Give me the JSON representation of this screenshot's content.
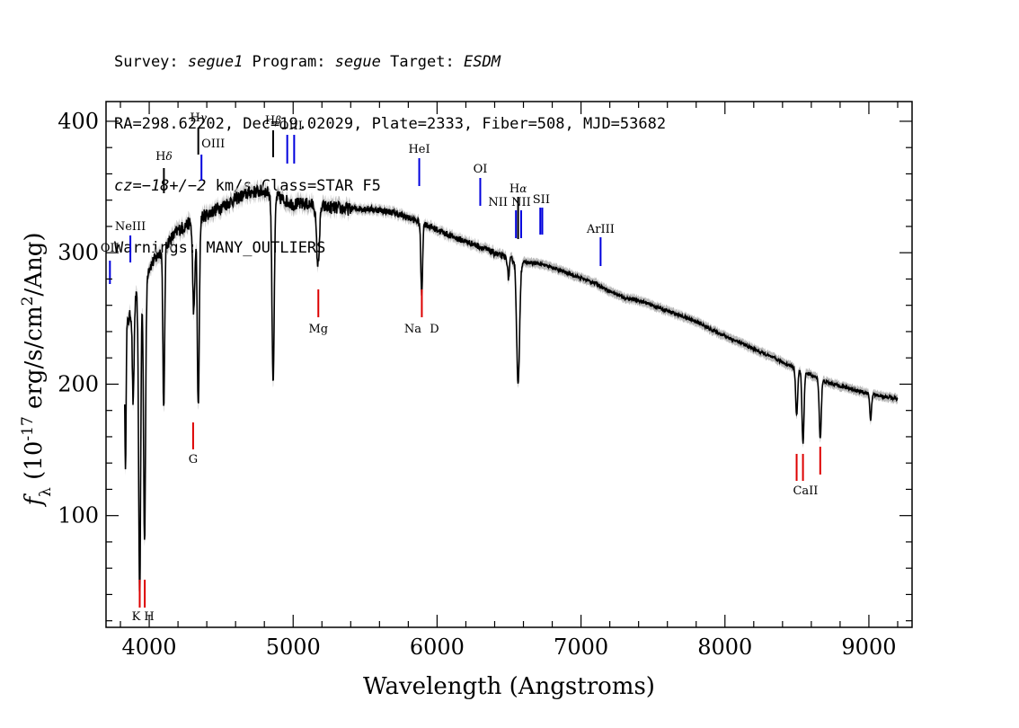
{
  "header": {
    "line1": {
      "survey_label": "Survey: ",
      "survey": "segue1",
      "program_label": " Program: ",
      "program": "segue",
      "target_label": " Target: ",
      "target": "ESDM"
    },
    "line2": "RA=298.62202, Dec=19.02029, Plate=2333, Fiber=508, MJD=53682",
    "line3": {
      "cz": "cz=−18+/−2",
      "rest": " km/s Class=STAR F5"
    },
    "line4": "Warnings: MANY_OUTLIERS"
  },
  "chart_data": {
    "type": "line",
    "xlabel": "Wavelength (Angstroms)",
    "ylabel": "f_λ (10^-17 erg/s/cm^2/Ang)",
    "xlim": [
      3700,
      9300
    ],
    "ylim": [
      15,
      415
    ],
    "xticks": [
      4000,
      5000,
      6000,
      7000,
      8000,
      9000
    ],
    "yticks": [
      100,
      200,
      300,
      400
    ],
    "colors": {
      "spectrum": "#000000",
      "error_band": "#b8b8b8",
      "emission": "#0000dd",
      "absorption": "#dd0000",
      "other": "#000000"
    },
    "continuum": [
      [
        3830,
        240
      ],
      [
        3900,
        265
      ],
      [
        4000,
        290
      ],
      [
        4100,
        305
      ],
      [
        4200,
        318
      ],
      [
        4300,
        325
      ],
      [
        4400,
        330
      ],
      [
        4500,
        336
      ],
      [
        4600,
        342
      ],
      [
        4700,
        347
      ],
      [
        4800,
        348
      ],
      [
        4900,
        343
      ],
      [
        5000,
        338
      ],
      [
        5100,
        338
      ],
      [
        5200,
        336
      ],
      [
        5300,
        335
      ],
      [
        5400,
        334
      ],
      [
        5500,
        334
      ],
      [
        5600,
        333
      ],
      [
        5700,
        331
      ],
      [
        5800,
        327
      ],
      [
        5900,
        323
      ],
      [
        6000,
        318
      ],
      [
        6100,
        313
      ],
      [
        6200,
        309
      ],
      [
        6300,
        305
      ],
      [
        6400,
        300
      ],
      [
        6500,
        296
      ],
      [
        6600,
        293
      ],
      [
        6700,
        292
      ],
      [
        6800,
        289
      ],
      [
        6900,
        285
      ],
      [
        7000,
        281
      ],
      [
        7100,
        277
      ],
      [
        7200,
        271
      ],
      [
        7300,
        266
      ],
      [
        7400,
        264
      ],
      [
        7500,
        260
      ],
      [
        7600,
        256
      ],
      [
        7700,
        252
      ],
      [
        7800,
        248
      ],
      [
        7900,
        242
      ],
      [
        8000,
        237
      ],
      [
        8100,
        232
      ],
      [
        8200,
        227
      ],
      [
        8300,
        222
      ],
      [
        8400,
        217
      ],
      [
        8500,
        212
      ],
      [
        8600,
        207
      ],
      [
        8700,
        202
      ],
      [
        8800,
        199
      ],
      [
        8900,
        196
      ],
      [
        9000,
        193
      ],
      [
        9100,
        191
      ],
      [
        9200,
        189
      ]
    ],
    "absorption_features": [
      {
        "center": 3835,
        "depth": 110,
        "width": 4
      },
      {
        "center": 3889,
        "depth": 75,
        "width": 6
      },
      {
        "center": 3934,
        "depth": 235,
        "width": 7
      },
      {
        "center": 3968,
        "depth": 200,
        "width": 7
      },
      {
        "center": 4101,
        "depth": 125,
        "width": 6
      },
      {
        "center": 4310,
        "depth": 70,
        "width": 8
      },
      {
        "center": 4341,
        "depth": 145,
        "width": 7
      },
      {
        "center": 4861,
        "depth": 140,
        "width": 8
      },
      {
        "center": 5172,
        "depth": 45,
        "width": 10
      },
      {
        "center": 5893,
        "depth": 55,
        "width": 6
      },
      {
        "center": 6496,
        "depth": 15,
        "width": 6
      },
      {
        "center": 6563,
        "depth": 95,
        "width": 10
      },
      {
        "center": 8498,
        "depth": 35,
        "width": 7
      },
      {
        "center": 8542,
        "depth": 55,
        "width": 7
      },
      {
        "center": 8662,
        "depth": 45,
        "width": 7
      },
      {
        "center": 9012,
        "depth": 20,
        "width": 6
      }
    ],
    "emission_lines": [
      {
        "label": "OII",
        "wave": 3727
      },
      {
        "label": "NeIII",
        "wave": 3869
      },
      {
        "label": "OIII",
        "wave": 4363
      },
      {
        "label": "OIII",
        "wave": 4959
      },
      {
        "label": "OIII",
        "wave": 5007
      },
      {
        "label": "HeI",
        "wave": 5876
      },
      {
        "label": "OI",
        "wave": 6300
      },
      {
        "label": "NII",
        "wave": 6548
      },
      {
        "label": "NII",
        "wave": 6584
      },
      {
        "label": "SII",
        "wave": 6717
      },
      {
        "label": "SII",
        "wave": 6731
      },
      {
        "label": "ArIII",
        "wave": 7136
      }
    ],
    "balmer_lines": [
      {
        "label": "Hδ",
        "wave": 4102
      },
      {
        "label": "Hγ",
        "wave": 4341
      },
      {
        "label": "Hβ",
        "wave": 4861
      },
      {
        "label": "Hα",
        "wave": 6563
      }
    ],
    "absorption_lines": [
      {
        "label": "K",
        "wave": 3934
      },
      {
        "label": "H",
        "wave": 3969
      },
      {
        "label": "G",
        "wave": 4305
      },
      {
        "label": "Mg",
        "wave": 5175
      },
      {
        "label": "Na",
        "wave": 5894
      },
      {
        "label": "D",
        "wave": 5894
      },
      {
        "label": "CaII",
        "wave": 8498
      },
      {
        "label": "CaII",
        "wave": 8542
      },
      {
        "label": "CaII",
        "wave": 8662
      }
    ]
  }
}
